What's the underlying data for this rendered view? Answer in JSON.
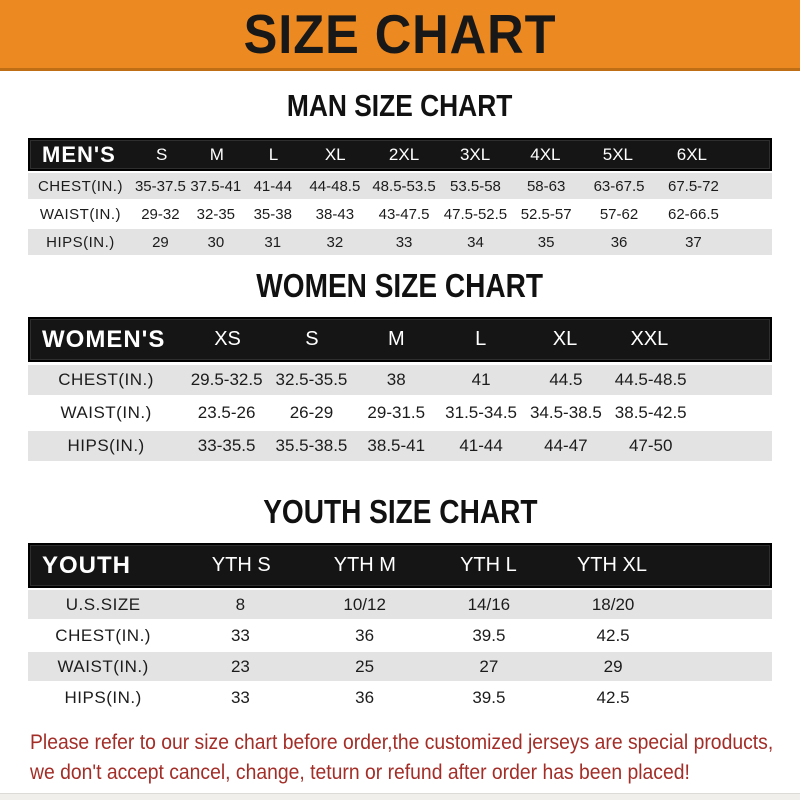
{
  "banner": {
    "title": "SIZE CHART"
  },
  "colors": {
    "banner_bg": "#EC8920",
    "banner_border": "#C06E15",
    "header_bar_bg": "#151515",
    "row_shade": "#e3e3e3",
    "disclaimer_text": "#A32E28",
    "heading_text": "#111111"
  },
  "men": {
    "heading": "MAN SIZE CHART",
    "header": {
      "label": "MEN'S",
      "sizes": [
        "S",
        "M",
        "L",
        "XL",
        "2XL",
        "3XL",
        "4XL",
        "5XL",
        "6XL"
      ]
    },
    "rows": [
      {
        "label": "CHEST(IN.)",
        "values": [
          "35-37.5",
          "37.5-41",
          "41-44",
          "44-48.5",
          "48.5-53.5",
          "53.5-58",
          "58-63",
          "63-67.5",
          "67.5-72"
        ]
      },
      {
        "label": "WAIST(IN.)",
        "values": [
          "29-32",
          "32-35",
          "35-38",
          "38-43",
          "43-47.5",
          "47.5-52.5",
          "52.5-57",
          "57-62",
          "62-66.5"
        ]
      },
      {
        "label": "HIPS(IN.)",
        "values": [
          "29",
          "30",
          "31",
          "32",
          "33",
          "34",
          "35",
          "36",
          "37"
        ]
      }
    ]
  },
  "women": {
    "heading": "WOMEN SIZE CHART",
    "header": {
      "label": "WOMEN'S",
      "sizes": [
        "XS",
        "S",
        "M",
        "L",
        "XL",
        "XXL"
      ]
    },
    "rows": [
      {
        "label": "CHEST(IN.)",
        "values": [
          "29.5-32.5",
          "32.5-35.5",
          "38",
          "41",
          "44.5",
          "44.5-48.5"
        ]
      },
      {
        "label": "WAIST(IN.)",
        "values": [
          "23.5-26",
          "26-29",
          "29-31.5",
          "31.5-34.5",
          "34.5-38.5",
          "38.5-42.5"
        ]
      },
      {
        "label": "HIPS(IN.)",
        "values": [
          "33-35.5",
          "35.5-38.5",
          "38.5-41",
          "41-44",
          "44-47",
          "47-50"
        ]
      }
    ]
  },
  "youth": {
    "heading": "YOUTH SIZE CHART",
    "header": {
      "label": "YOUTH",
      "sizes": [
        "YTH S",
        "YTH M",
        "YTH L",
        "YTH XL"
      ]
    },
    "rows": [
      {
        "label": "U.S.SIZE",
        "values": [
          "8",
          "10/12",
          "14/16",
          "18/20"
        ]
      },
      {
        "label": "CHEST(IN.)",
        "values": [
          "33",
          "36",
          "39.5",
          "42.5"
        ]
      },
      {
        "label": "WAIST(IN.)",
        "values": [
          "23",
          "25",
          "27",
          "29"
        ]
      },
      {
        "label": "HIPS(IN.)",
        "values": [
          "33",
          "36",
          "39.5",
          "42.5"
        ]
      }
    ]
  },
  "disclaimer": {
    "line1": "Please refer to our size chart before order,the customized jerseys are special products,",
    "line2": "we don't accept cancel, change, teturn or refund after order has been placed!"
  }
}
